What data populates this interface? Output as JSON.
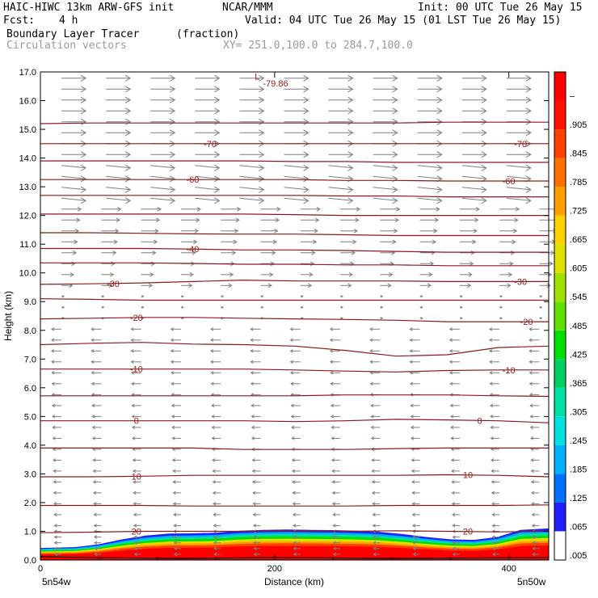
{
  "header": {
    "model": "HAIC-HIWC 13km ARW-GFS init",
    "org": "NCAR/MMM",
    "init": "Init: 00 UTC Tue 26 May 15",
    "fcst_label": "Fcst:",
    "fcst_value": "4 h",
    "valid": "Valid: 04 UTC Tue 26 May 15 (01 LST Tue 26 May 15)",
    "field1": "Boundary Layer Tracer",
    "field1_units": "(fraction)",
    "field2": "Circulation vectors",
    "xy": "XY= 251.0,100.0 to 284.7,100.0"
  },
  "colors": {
    "contour": "#8b1a1a",
    "vector": "#7f7f7f"
  },
  "chart_data": {
    "type": "heatmap",
    "title": "Boundary Layer Tracer",
    "xlabel": "Distance (km)",
    "ylabel": "Height (km)",
    "xlim": [
      0,
      434
    ],
    "ylim": [
      0,
      17
    ],
    "x_ticks": [
      0,
      200,
      400
    ],
    "y_ticks": [
      "0.0",
      "1.0",
      "2.0",
      "3.0",
      "4.0",
      "5.0",
      "6.0",
      "7.0",
      "8.0",
      "9.0",
      "10.0",
      "11.0",
      "12.0",
      "13.0",
      "14.0",
      "15.0",
      "16.0",
      "17.0"
    ],
    "x_end_labels": {
      "left": "5n54w",
      "right": "5n50w"
    },
    "colorbar": {
      "labels": [
        ".005",
        ".065",
        ".125",
        ".185",
        ".245",
        ".305",
        ".365",
        ".425",
        ".485",
        ".545",
        ".605",
        ".665",
        ".725",
        ".785",
        ".845",
        ".905",
        "–"
      ],
      "colors": [
        "#ffffff",
        "#2020ff",
        "#0070ff",
        "#00b0ff",
        "#00e0e0",
        "#00e0a0",
        "#00d060",
        "#00e000",
        "#60e000",
        "#a0e000",
        "#e0e000",
        "#ffd000",
        "#ffa000",
        "#ff7000",
        "#ff4000",
        "#ff1000",
        "#ff0000"
      ]
    },
    "contour_lines": [
      {
        "level": "20",
        "y": [
          0.95,
          0.97,
          1.0,
          1.0,
          1.0,
          1.0,
          1.0,
          1.02,
          1.0,
          0.98,
          1.0
        ],
        "labels": [
          {
            "text": "20",
            "x": 82
          },
          {
            "text": "20",
            "x": 365
          }
        ]
      },
      {
        "level": "10",
        "y": [
          1.9,
          1.9,
          1.9,
          1.88,
          1.88,
          1.88,
          1.88,
          1.9,
          1.9,
          1.9,
          1.92
        ],
        "labels": []
      },
      {
        "level": "10",
        "y": [
          2.9,
          2.9,
          2.92,
          2.95,
          2.95,
          2.95,
          2.95,
          2.95,
          2.97,
          2.95,
          2.9
        ],
        "labels": [
          {
            "text": "10",
            "x": 82
          },
          {
            "text": "10",
            "x": 365
          }
        ]
      },
      {
        "level": "0",
        "y": [
          3.9,
          3.9,
          3.9,
          3.9,
          3.85,
          3.85,
          3.85,
          3.88,
          3.9,
          3.9,
          3.9
        ],
        "labels": []
      },
      {
        "level": "0",
        "y": [
          4.85,
          4.85,
          4.85,
          4.85,
          4.85,
          4.82,
          4.85,
          4.9,
          4.88,
          4.85,
          4.78
        ],
        "labels": [
          {
            "text": "0",
            "x": 82
          },
          {
            "text": "0",
            "x": 375
          }
        ]
      },
      {
        "level": "-10",
        "y": [
          5.72,
          5.72,
          5.72,
          5.72,
          5.72,
          5.72,
          5.75,
          5.75,
          5.75,
          5.72,
          5.7
        ],
        "labels": []
      },
      {
        "level": "-10",
        "y": [
          6.65,
          6.65,
          6.65,
          6.65,
          6.65,
          6.62,
          6.58,
          6.55,
          6.6,
          6.62,
          6.62
        ],
        "labels": [
          {
            "text": "-10",
            "x": 82
          },
          {
            "text": "-10",
            "x": 400
          }
        ]
      },
      {
        "level": "-20",
        "y": [
          7.5,
          7.55,
          7.58,
          7.52,
          7.5,
          7.45,
          7.3,
          7.1,
          7.15,
          7.4,
          7.45
        ],
        "labels": []
      },
      {
        "level": "-20",
        "y": [
          8.4,
          8.42,
          8.45,
          8.45,
          8.42,
          8.4,
          8.38,
          8.35,
          8.3,
          8.3,
          8.3
        ],
        "labels": [
          {
            "text": "-20",
            "x": 82
          },
          {
            "text": "-20",
            "x": 415
          }
        ]
      },
      {
        "level": "-30",
        "y": [
          9.1,
          9.08,
          9.05,
          9.05,
          9.05,
          9.05,
          9.05,
          9.05,
          9.05,
          9.05,
          9.05
        ],
        "labels": []
      },
      {
        "level": "-30",
        "y": [
          9.6,
          9.62,
          9.65,
          9.7,
          9.75,
          9.72,
          9.72,
          9.72,
          9.7,
          9.7,
          9.7
        ],
        "labels": [
          {
            "text": "-30",
            "x": 62
          },
          {
            "text": "-30",
            "x": 410
          }
        ]
      },
      {
        "level": "-40",
        "y": [
          10.35,
          10.35,
          10.35,
          10.33,
          10.3,
          10.3,
          10.28,
          10.28,
          10.25,
          10.25,
          10.25
        ],
        "labels": []
      },
      {
        "level": "-40",
        "y": [
          10.85,
          10.85,
          10.85,
          10.83,
          10.8,
          10.8,
          10.78,
          10.75,
          10.72,
          10.72,
          10.72
        ],
        "labels": [
          {
            "text": "-40",
            "x": 130
          }
        ]
      },
      {
        "level": "-50",
        "y": [
          11.4,
          11.4,
          11.38,
          11.36,
          11.35,
          11.35,
          11.33,
          11.3,
          11.3,
          11.3,
          11.3
        ],
        "labels": []
      },
      {
        "level": "-50",
        "y": [
          12.05,
          12.05,
          12.05,
          12.05,
          12.05,
          12.03,
          12.0,
          12.0,
          12.0,
          12.0,
          12.0
        ],
        "labels": []
      },
      {
        "level": "-60",
        "y": [
          12.7,
          12.7,
          12.7,
          12.7,
          12.7,
          12.7,
          12.68,
          12.68,
          12.65,
          12.65,
          12.65
        ],
        "labels": []
      },
      {
        "level": "-60",
        "y": [
          13.25,
          13.25,
          13.25,
          13.25,
          13.25,
          13.25,
          13.22,
          13.22,
          13.2,
          13.2,
          13.2
        ],
        "labels": [
          {
            "text": "-60",
            "x": 130
          },
          {
            "text": "-60",
            "x": 400
          }
        ]
      },
      {
        "level": "-70",
        "y": [
          13.9,
          13.9,
          13.9,
          13.9,
          13.9,
          13.88,
          13.88,
          13.85,
          13.85,
          13.85,
          13.85
        ],
        "labels": []
      },
      {
        "level": "-70",
        "y": [
          14.5,
          14.5,
          14.5,
          14.5,
          14.5,
          14.5,
          14.5,
          14.5,
          14.5,
          14.5,
          14.5
        ],
        "labels": [
          {
            "text": "-70",
            "x": 145
          },
          {
            "text": "-70",
            "x": 410
          }
        ]
      },
      {
        "level": "-80",
        "y": [
          15.2,
          15.22,
          15.22,
          15.22,
          15.22,
          15.22,
          15.22,
          15.22,
          15.25,
          15.25,
          15.25
        ],
        "labels": []
      }
    ],
    "annotations": [
      {
        "text": "L",
        "x": 183,
        "y": 16.85
      },
      {
        "text": "-79.86",
        "x": 190,
        "y": 16.6
      }
    ]
  }
}
